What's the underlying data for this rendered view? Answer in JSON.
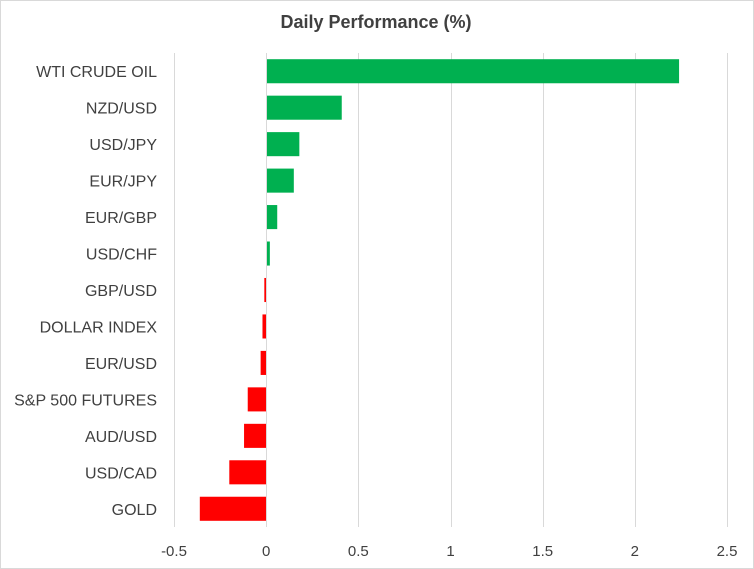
{
  "chart_data": {
    "type": "bar",
    "orientation": "horizontal",
    "title": "Daily Performance (%)",
    "xlabel": "",
    "ylabel": "",
    "categories": [
      "WTI CRUDE OIL",
      "NZD/USD",
      "USD/JPY",
      "EUR/JPY",
      "EUR/GBP",
      "USD/CHF",
      "GBP/USD",
      "DOLLAR INDEX",
      "EUR/USD",
      "S&P 500 FUTURES",
      "AUD/USD",
      "USD/CAD",
      "GOLD"
    ],
    "values": [
      2.24,
      0.41,
      0.18,
      0.15,
      0.06,
      0.02,
      -0.01,
      -0.02,
      -0.03,
      -0.1,
      -0.12,
      -0.2,
      -0.36
    ],
    "xlim": [
      -0.5,
      2.5
    ],
    "xticks": [
      -0.5,
      0,
      0.5,
      1,
      1.5,
      2,
      2.5
    ],
    "xtick_labels": [
      "-0.5",
      "0",
      "0.5",
      "1",
      "1.5",
      "2",
      "2.5"
    ],
    "grid": "vertical",
    "legend": "none",
    "colors": {
      "positive": "#00b050",
      "negative": "#ff0000",
      "grid": "#d9d9d9",
      "text": "#404040"
    }
  }
}
